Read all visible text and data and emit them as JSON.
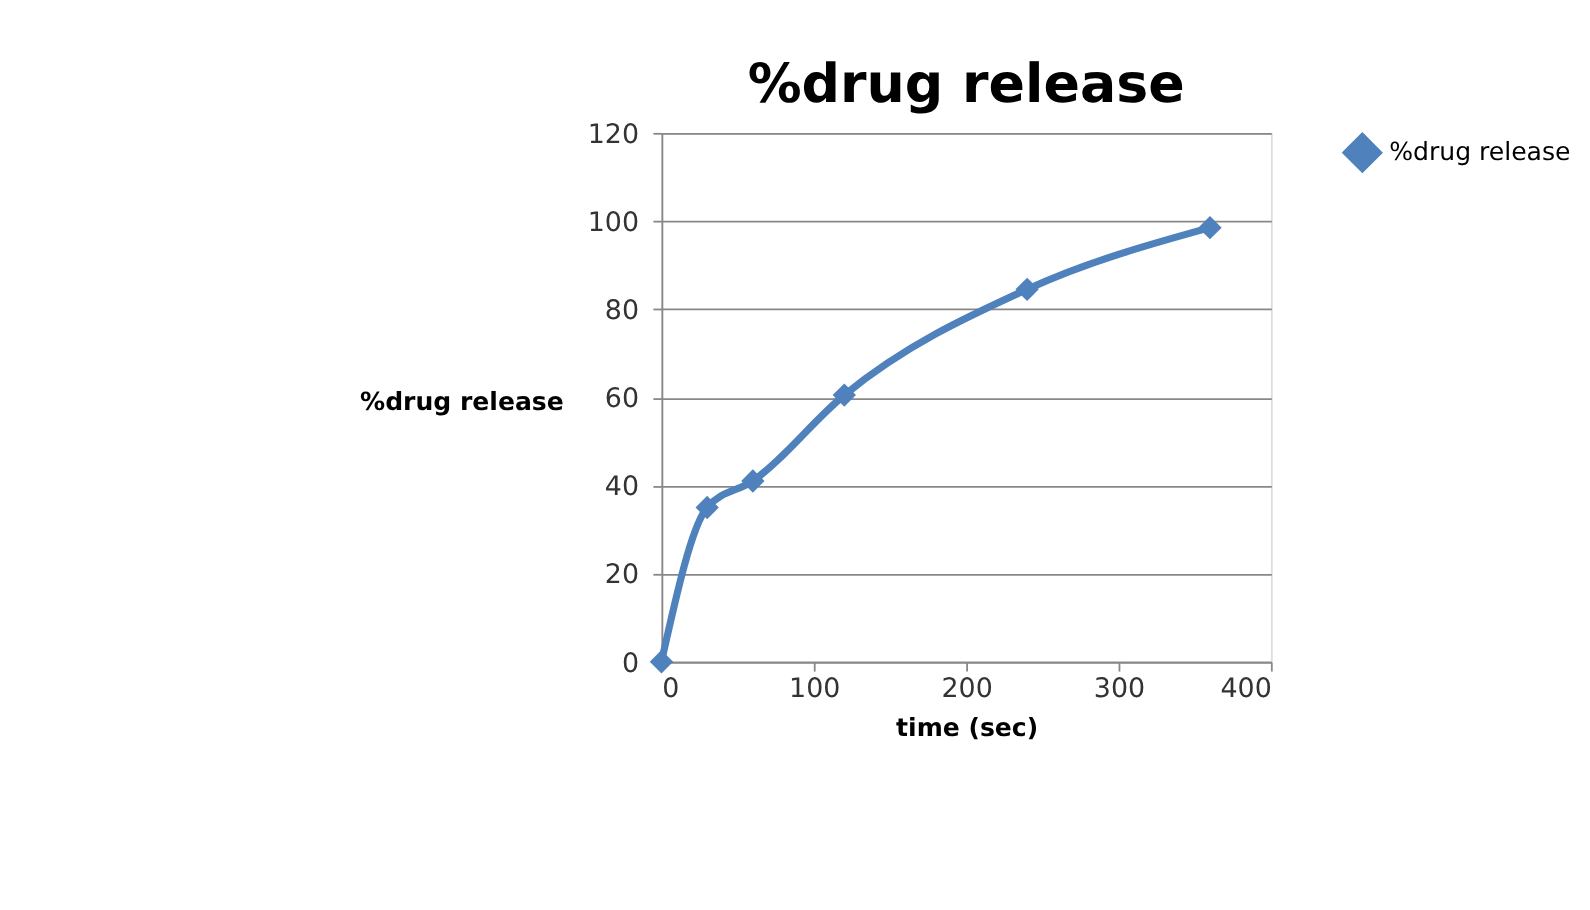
{
  "chart_data": {
    "type": "line",
    "title": "%drug release",
    "xlabel": "time (sec)",
    "ylabel": "%drug release",
    "x": [
      0,
      30,
      60,
      120,
      240,
      360
    ],
    "series": [
      {
        "name": "%drug release",
        "color": "#4f81bd",
        "values": [
          0,
          35,
          41,
          60.5,
          84.5,
          98.5
        ]
      }
    ],
    "xlim": [
      0,
      400
    ],
    "xticks": [
      0,
      100,
      200,
      300,
      400
    ],
    "ylim": [
      0,
      120
    ],
    "yticks": [
      0,
      20,
      40,
      60,
      80,
      100,
      120
    ],
    "grid": "y",
    "legend": "right",
    "marker": "diamond",
    "line_style": "solid"
  }
}
